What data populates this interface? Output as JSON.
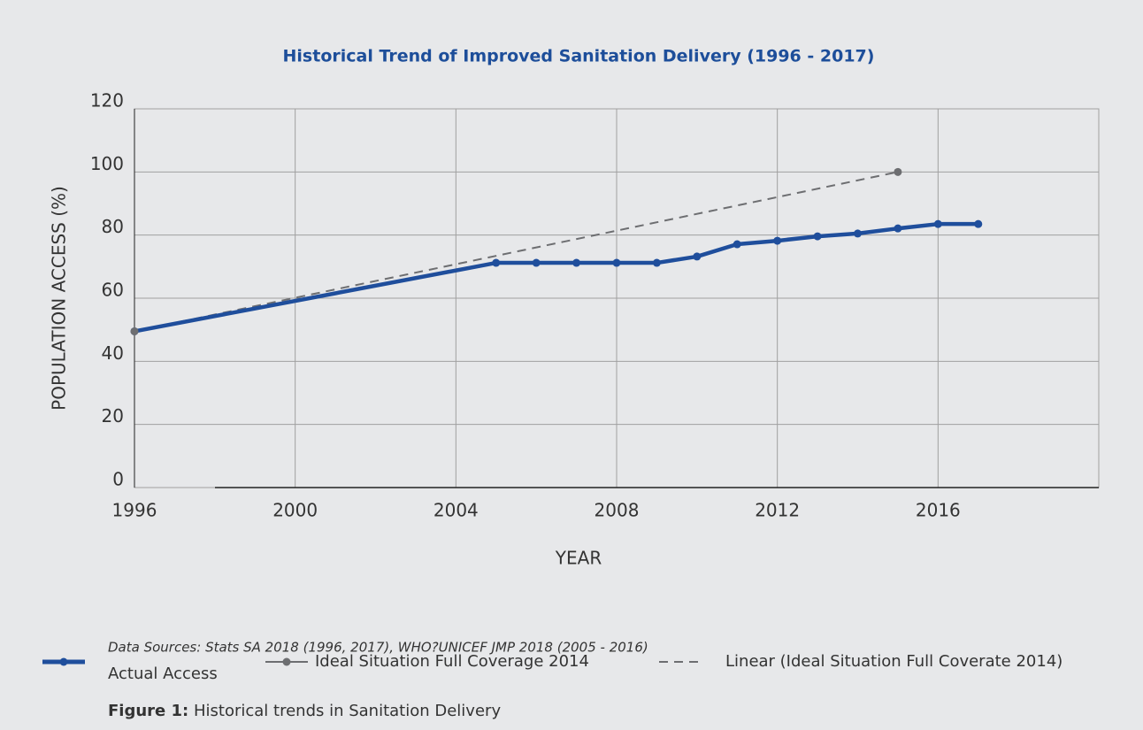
{
  "chart_data": {
    "type": "line",
    "title": "Historical Trend of Improved Sanitation Delivery (1996 - 2017)",
    "xlabel": "YEAR",
    "ylabel": "POPULATION ACCESS (%)",
    "xlim": [
      1996,
      2020
    ],
    "xticks": [
      1996,
      2000,
      2004,
      2008,
      2012,
      2016
    ],
    "ylim": [
      0,
      120
    ],
    "yticks": [
      0,
      20,
      40,
      60,
      80,
      100,
      120
    ],
    "grid": true,
    "series": [
      {
        "name": "Actual Access",
        "color": "#1f4e9c",
        "style": "solid-markers",
        "x": [
          1996,
          2005,
          2006,
          2007,
          2008,
          2009,
          2010,
          2011,
          2012,
          2013,
          2014,
          2015,
          2016,
          2017
        ],
        "values": [
          49.5,
          71.2,
          71.2,
          71.2,
          71.2,
          71.2,
          73.2,
          77.1,
          78.2,
          79.6,
          80.5,
          82.1,
          83.5,
          83.5
        ]
      },
      {
        "name": "Ideal Situation Full Coverage 2014",
        "color": "#6d6e71",
        "style": "markers",
        "x": [
          1996,
          2015
        ],
        "values": [
          49.5,
          100
        ]
      },
      {
        "name": "Linear (Ideal Situation Full Coverate 2014)",
        "color": "#6d6e71",
        "style": "dashed",
        "x": [
          1996,
          2015
        ],
        "values": [
          49.5,
          100
        ]
      }
    ],
    "source": "Data Sources: Stats SA 2018 (1996, 2017), WHO?UNICEF JMP 2018 (2005 - 2016)"
  },
  "caption": {
    "label": "Figure 1:",
    "text": "Historical trends in Sanitation Delivery"
  }
}
